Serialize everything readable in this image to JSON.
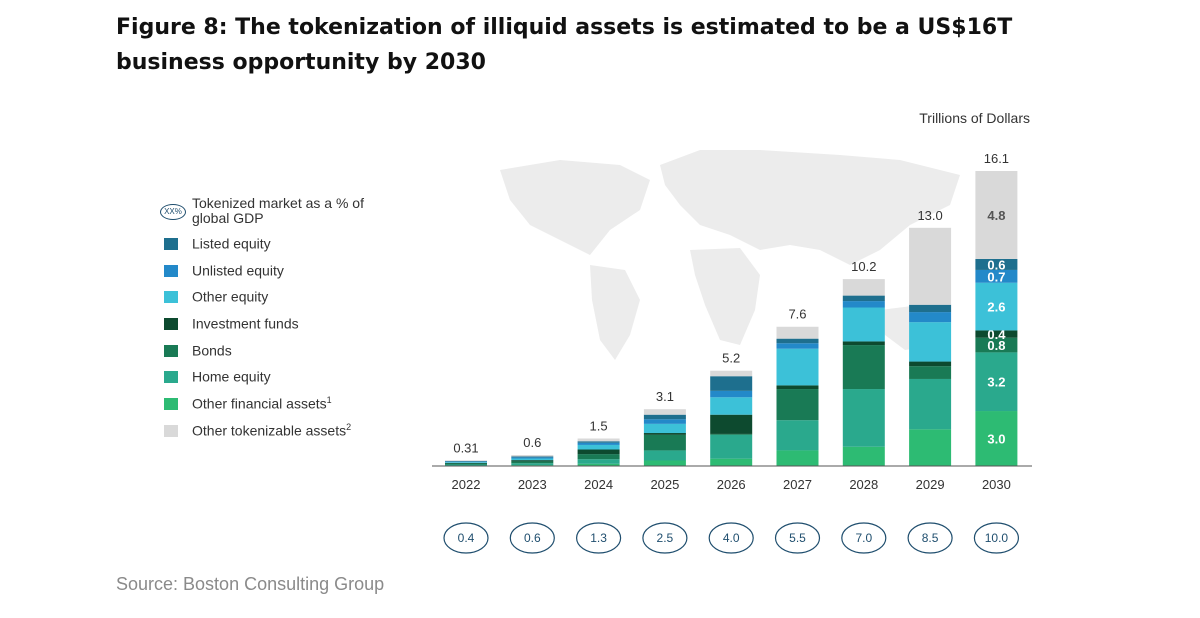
{
  "title": "Figure 8: The tokenization of illiquid assets is estimated to be a US$16T business opportunity by 2030",
  "unit_label": "Trillions of Dollars",
  "source": "Source: Boston Consulting Group",
  "legend": {
    "gdp_icon_text": "XX%",
    "gdp_label": "Tokenized market as a % of global GDP",
    "items": [
      {
        "label": "Listed equity",
        "sup": "",
        "color": "#1e6f8e"
      },
      {
        "label": "Unlisted equity",
        "sup": "",
        "color": "#2389c9"
      },
      {
        "label": "Other equity",
        "sup": "",
        "color": "#3cc1d8"
      },
      {
        "label": "Investment funds",
        "sup": "",
        "color": "#0d4a2f"
      },
      {
        "label": "Bonds",
        "sup": "",
        "color": "#197a55"
      },
      {
        "label": "Home equity",
        "sup": "",
        "color": "#2aa98d"
      },
      {
        "label": "Other financial assets",
        "sup": "1",
        "color": "#2dbb73"
      },
      {
        "label": "Other tokenizable assets",
        "sup": "2",
        "color": "#d9d9d9"
      }
    ]
  },
  "chart_data": {
    "type": "bar",
    "stacked": true,
    "title": "Figure 8: The tokenization of illiquid assets is estimated to be a US$16T business opportunity by 2030",
    "ylabel": "Trillions of Dollars",
    "categories": [
      "2022",
      "2023",
      "2024",
      "2025",
      "2026",
      "2027",
      "2028",
      "2029",
      "2030"
    ],
    "totals": [
      "0.31",
      "0.6",
      "1.5",
      "3.1",
      "5.2",
      "7.6",
      "10.2",
      "13.0",
      "16.1"
    ],
    "gdp_percent": [
      "0.4",
      "0.6",
      "1.3",
      "2.5",
      "4.0",
      "5.5",
      "7.0",
      "8.5",
      "10.0"
    ],
    "series": [
      {
        "name": "Other financial assets",
        "values": [
          0.02,
          0.05,
          0.12,
          0.3,
          0.4,
          0.85,
          1.05,
          2.0,
          3.0
        ],
        "labels": [
          "",
          "",
          "",
          "",
          "",
          "",
          "",
          "",
          "3.0"
        ]
      },
      {
        "name": "Home equity",
        "values": [
          0.06,
          0.1,
          0.25,
          0.55,
          1.3,
          1.65,
          3.15,
          2.75,
          3.2
        ],
        "labels": [
          "",
          "",
          "",
          "",
          "",
          "",
          "",
          "",
          "3.2"
        ]
      },
      {
        "name": "Bonds",
        "values": [
          0.06,
          0.1,
          0.28,
          0.85,
          0.05,
          1.7,
          2.4,
          0.7,
          0.8
        ],
        "labels": [
          "",
          "",
          "",
          "",
          "",
          "",
          "",
          "",
          "0.8"
        ]
      },
      {
        "name": "Investment funds",
        "values": [
          0.03,
          0.07,
          0.25,
          0.1,
          1.05,
          0.2,
          0.2,
          0.25,
          0.4
        ],
        "labels": [
          "",
          "",
          "",
          "",
          "",
          "",
          "",
          "",
          "0.4"
        ]
      },
      {
        "name": "Other equity",
        "values": [
          0.04,
          0.09,
          0.25,
          0.5,
          0.95,
          2.0,
          1.85,
          2.15,
          2.6
        ],
        "labels": [
          "",
          "",
          "",
          "",
          "",
          "",
          "",
          "",
          "2.6"
        ]
      },
      {
        "name": "Unlisted equity",
        "values": [
          0.03,
          0.06,
          0.12,
          0.25,
          0.35,
          0.3,
          0.35,
          0.55,
          0.7
        ],
        "labels": [
          "",
          "",
          "",
          "",
          "",
          "",
          "",
          "",
          "0.7"
        ]
      },
      {
        "name": "Listed equity",
        "values": [
          0.03,
          0.05,
          0.08,
          0.25,
          0.8,
          0.25,
          0.3,
          0.4,
          0.6
        ],
        "labels": [
          "",
          "",
          "",
          "",
          "",
          "",
          "",
          "",
          "0.6"
        ]
      },
      {
        "name": "Other tokenizable assets",
        "values": [
          0.04,
          0.08,
          0.15,
          0.3,
          0.3,
          0.65,
          0.9,
          4.2,
          4.8
        ],
        "labels": [
          "",
          "",
          "",
          "",
          "",
          "",
          "",
          "",
          "4.8"
        ]
      }
    ],
    "ylim": [
      0,
      16.1
    ]
  }
}
